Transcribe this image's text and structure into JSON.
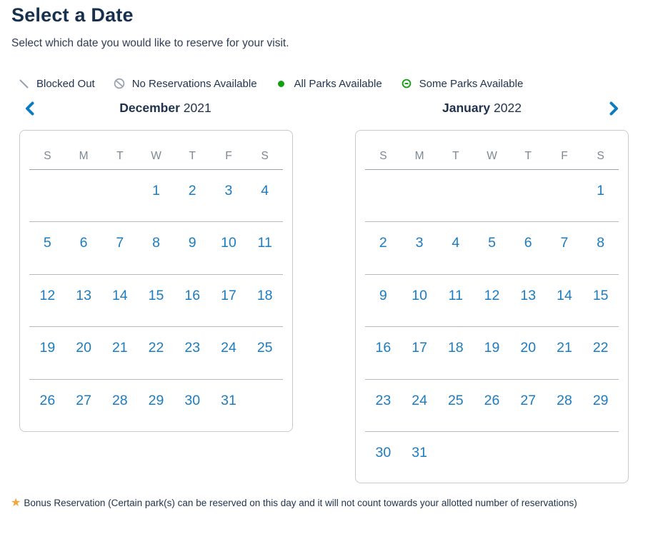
{
  "page": {
    "title": "Select a Date",
    "subtitle": "Select which date you would like to reserve for your visit."
  },
  "legend": {
    "items": [
      {
        "icon": "blocked-out-icon",
        "label": "Blocked Out"
      },
      {
        "icon": "no-reservations-icon",
        "label": "No Reservations Available"
      },
      {
        "icon": "all-parks-icon",
        "label": "All Parks Available"
      },
      {
        "icon": "some-parks-icon",
        "label": "Some Parks Available"
      }
    ]
  },
  "nav": {
    "previous_month": "previous month",
    "next_month": "next month"
  },
  "colors": {
    "date_blue": "#1b7cc2",
    "chevron_blue": "#0d7ac4",
    "available_green": "#11a011",
    "navy_text": "#16304e",
    "icon_gray": "#97a1ab",
    "star_gold": "#f3a53a"
  },
  "calendars": [
    {
      "month": "December",
      "year": "2021",
      "day_headers": [
        "S",
        "M",
        "T",
        "W",
        "T",
        "F",
        "S"
      ],
      "weeks": [
        [
          null,
          null,
          null,
          {
            "day": "1",
            "status": "all-parks"
          },
          {
            "day": "2",
            "status": "all-parks"
          },
          {
            "day": "3",
            "status": "all-parks"
          },
          {
            "day": "4",
            "status": "all-parks"
          }
        ],
        [
          {
            "day": "5",
            "status": "all-parks"
          },
          {
            "day": "6",
            "status": "all-parks"
          },
          {
            "day": "7",
            "status": "all-parks"
          },
          {
            "day": "8",
            "status": "all-parks"
          },
          {
            "day": "9",
            "status": "all-parks"
          },
          {
            "day": "10",
            "status": "all-parks"
          },
          {
            "day": "11",
            "status": "all-parks"
          }
        ],
        [
          {
            "day": "12",
            "status": "all-parks"
          },
          {
            "day": "13",
            "status": "all-parks"
          },
          {
            "day": "14",
            "status": "all-parks"
          },
          {
            "day": "15",
            "status": "all-parks"
          },
          {
            "day": "16",
            "status": "all-parks"
          },
          {
            "day": "17",
            "status": "all-parks"
          },
          {
            "day": "18",
            "status": "all-parks"
          }
        ],
        [
          {
            "day": "19",
            "status": "all-parks"
          },
          {
            "day": "20",
            "status": "all-parks"
          },
          {
            "day": "21",
            "status": "all-parks"
          },
          {
            "day": "22",
            "status": "all-parks"
          },
          {
            "day": "23",
            "status": "all-parks"
          },
          {
            "day": "24",
            "status": "all-parks"
          },
          {
            "day": "25",
            "status": "all-parks"
          }
        ],
        [
          {
            "day": "26",
            "status": "all-parks"
          },
          {
            "day": "27",
            "status": "all-parks"
          },
          {
            "day": "28",
            "status": "all-parks"
          },
          {
            "day": "29",
            "status": "all-parks"
          },
          {
            "day": "30",
            "status": "all-parks"
          },
          {
            "day": "31",
            "status": "all-parks"
          },
          null
        ]
      ]
    },
    {
      "month": "January",
      "year": "2022",
      "day_headers": [
        "S",
        "M",
        "T",
        "W",
        "T",
        "F",
        "S"
      ],
      "weeks": [
        [
          null,
          null,
          null,
          null,
          null,
          null,
          {
            "day": "1",
            "status": "all-parks"
          }
        ],
        [
          {
            "day": "2",
            "status": "all-parks"
          },
          {
            "day": "3",
            "status": "all-parks"
          },
          {
            "day": "4",
            "status": "all-parks"
          },
          {
            "day": "5",
            "status": "all-parks"
          },
          {
            "day": "6",
            "status": "all-parks"
          },
          {
            "day": "7",
            "status": "all-parks"
          },
          {
            "day": "8",
            "status": "all-parks"
          }
        ],
        [
          {
            "day": "9",
            "status": "all-parks"
          },
          {
            "day": "10",
            "status": "all-parks"
          },
          {
            "day": "11",
            "status": "all-parks"
          },
          {
            "day": "12",
            "status": "all-parks"
          },
          {
            "day": "13",
            "status": "all-parks"
          },
          {
            "day": "14",
            "status": "all-parks"
          },
          {
            "day": "15",
            "status": "all-parks"
          }
        ],
        [
          {
            "day": "16",
            "status": "all-parks"
          },
          {
            "day": "17",
            "status": "all-parks"
          },
          {
            "day": "18",
            "status": "all-parks"
          },
          {
            "day": "19",
            "status": "all-parks"
          },
          {
            "day": "20",
            "status": "all-parks"
          },
          {
            "day": "21",
            "status": "all-parks"
          },
          {
            "day": "22",
            "status": "all-parks"
          }
        ],
        [
          {
            "day": "23",
            "status": "all-parks"
          },
          {
            "day": "24",
            "status": "all-parks"
          },
          {
            "day": "25",
            "status": "all-parks"
          },
          {
            "day": "26",
            "status": "all-parks"
          },
          {
            "day": "27",
            "status": "all-parks"
          },
          {
            "day": "28",
            "status": "all-parks"
          },
          {
            "day": "29",
            "status": "all-parks"
          }
        ],
        [
          {
            "day": "30",
            "status": "all-parks"
          },
          {
            "day": "31",
            "status": "all-parks"
          },
          null,
          null,
          null,
          null,
          null
        ]
      ]
    }
  ],
  "footer": {
    "note": "Bonus Reservation (Certain park(s) can be reserved on this day and it will not count towards your allotted number of reservations)"
  }
}
